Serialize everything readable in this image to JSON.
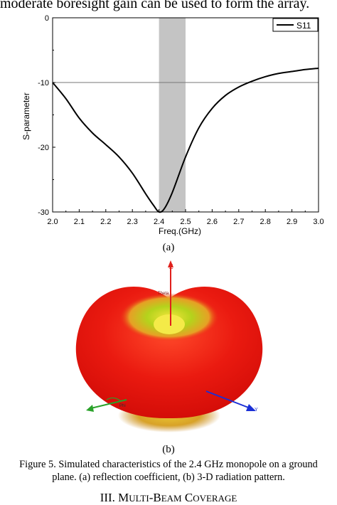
{
  "page": {
    "top_text": "moderate boresight gain can be used to form the array.",
    "subfig_a_label": "(a)",
    "subfig_b_label": "(b)",
    "caption_line1": "Figure 5. Simulated characteristics of the 2.4 GHz monopole on a ground",
    "caption_line2": "plane. (a) reflection coefficient, (b) 3-D radiation pattern.",
    "section_number": "III.",
    "section_title_parts": [
      "M",
      "ULTI",
      "-B",
      "EAM",
      " C",
      "OVERAGE"
    ]
  },
  "chart_data": {
    "type": "line",
    "xlabel": "Freq.(GHz)",
    "ylabel": "S-parameter",
    "xlim": [
      2.0,
      3.0
    ],
    "ylim": [
      -30,
      0
    ],
    "xticks": [
      "2.0",
      "2.1",
      "2.2",
      "2.3",
      "2.4",
      "2.5",
      "2.6",
      "2.7",
      "2.8",
      "2.9",
      "3.0"
    ],
    "yticks": [
      "0",
      "-10",
      "-20",
      "-30"
    ],
    "reference_line_y": -10,
    "highlight_band_x": [
      2.4,
      2.5
    ],
    "legend_position": "top-right",
    "series": [
      {
        "name": "S11",
        "x": [
          2.0,
          2.05,
          2.1,
          2.15,
          2.2,
          2.25,
          2.3,
          2.35,
          2.38,
          2.4,
          2.42,
          2.45,
          2.5,
          2.55,
          2.6,
          2.65,
          2.7,
          2.75,
          2.8,
          2.85,
          2.9,
          2.95,
          3.0
        ],
        "y": [
          -10.0,
          -12.5,
          -15.5,
          -17.8,
          -19.6,
          -21.5,
          -24.0,
          -27.2,
          -29.0,
          -30.0,
          -29.5,
          -27.0,
          -21.5,
          -17.0,
          -14.0,
          -12.0,
          -10.7,
          -9.8,
          -9.1,
          -8.6,
          -8.3,
          -8.0,
          -7.8
        ]
      }
    ]
  },
  "figure_b": {
    "axis_labels": [
      "Z",
      "Y",
      "Phi",
      "Theta"
    ],
    "colors": {
      "red": "#e8130f",
      "green": "#b5d21a",
      "axis_z": "#e0201c",
      "axis_y": "#1a2fd6",
      "axis_x": "#2aa22a"
    }
  }
}
